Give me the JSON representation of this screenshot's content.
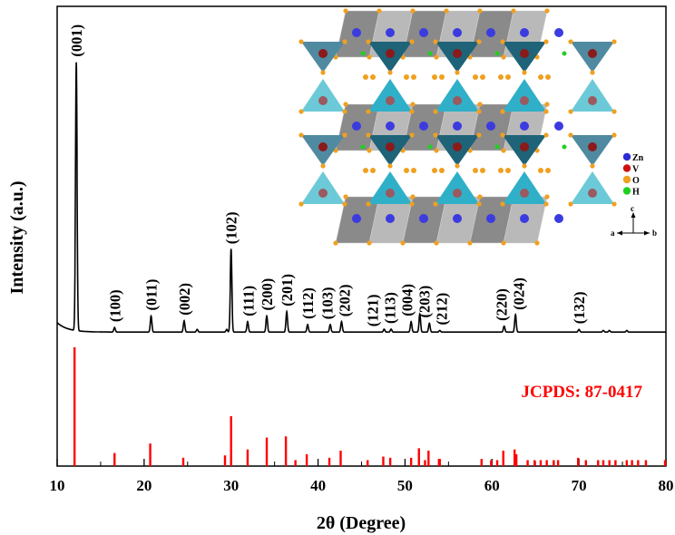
{
  "chart_data": {
    "type": "line",
    "xlabel": "2θ (Degree)",
    "ylabel": "Intensity (a.u.)",
    "xlim": [
      10,
      80
    ],
    "xticks": [
      "10",
      "20",
      "30",
      "40",
      "50",
      "60",
      "70",
      "80"
    ],
    "grid": false,
    "colors": {
      "pattern": "#000000",
      "reference": "#ff0000",
      "reference_label": "#ff0000"
    },
    "series": [
      {
        "type": "line",
        "peaks": [
          {
            "x": 12.2,
            "y": 100,
            "label": "(001)"
          },
          {
            "x": 16.6,
            "y": 1.7,
            "label": "(100)"
          },
          {
            "x": 20.8,
            "y": 6,
            "label": "(011)"
          },
          {
            "x": 24.6,
            "y": 4.2,
            "label": "(002)"
          },
          {
            "x": 26.1,
            "y": 1,
            "label": ""
          },
          {
            "x": 29.5,
            "y": 1,
            "label": ""
          },
          {
            "x": 30.0,
            "y": 31,
            "label": "(102)"
          },
          {
            "x": 31.9,
            "y": 3.9,
            "label": "(111)"
          },
          {
            "x": 34.1,
            "y": 6,
            "label": "(200)"
          },
          {
            "x": 36.4,
            "y": 7.6,
            "label": "(201)"
          },
          {
            "x": 38.8,
            "y": 2.8,
            "label": "(112)"
          },
          {
            "x": 41.4,
            "y": 2.8,
            "label": "(103)"
          },
          {
            "x": 42.7,
            "y": 3.9,
            "label": "(202)"
          },
          {
            "x": 47.6,
            "y": 1.1,
            "label": "(121)"
          },
          {
            "x": 48.4,
            "y": 1.1,
            "label": "(113)"
          },
          {
            "x": 50.7,
            "y": 3.9,
            "label": "(004)"
          },
          {
            "x": 51.7,
            "y": 6.7,
            "label": "(203)"
          },
          {
            "x": 52.8,
            "y": 3.3,
            "label": "(212)"
          },
          {
            "x": 54.0,
            "y": 0.6,
            "label": ""
          },
          {
            "x": 61.4,
            "y": 2.2,
            "label": "(220)"
          },
          {
            "x": 62.7,
            "y": 6.5,
            "label": "(024)"
          },
          {
            "x": 70.0,
            "y": 1,
            "label": "(132)"
          },
          {
            "x": 72.8,
            "y": 0.6,
            "label": ""
          },
          {
            "x": 73.5,
            "y": 0.6,
            "label": ""
          },
          {
            "x": 75.5,
            "y": 0.6,
            "label": ""
          }
        ]
      },
      {
        "type": "stick",
        "name": "JCPDS: 87-0417",
        "x": [
          12.0,
          16.6,
          20.7,
          24.5,
          29.3,
          30.0,
          31.9,
          34.1,
          36.3,
          37.4,
          38.7,
          41.3,
          42.6,
          45.7,
          47.5,
          48.3,
          50.7,
          51.6,
          52.3,
          52.7,
          53.9,
          54.0,
          58.8,
          59.9,
          60.6,
          61.3,
          62.6,
          62.8,
          64.1,
          64.9,
          65.6,
          66.3,
          67.1,
          67.6,
          69.9,
          70.8,
          72.2,
          72.8,
          73.5,
          74.2,
          75.5,
          76.1,
          76.8,
          77.7,
          79.9
        ],
        "y": [
          100,
          11,
          19,
          7,
          9,
          42,
          14,
          24,
          25,
          5,
          10,
          7,
          13,
          5,
          8,
          7,
          7,
          15,
          5,
          13,
          6,
          6,
          6,
          5,
          5,
          13,
          14,
          10,
          5,
          5,
          5,
          5,
          5,
          5,
          7,
          5,
          5,
          5,
          5,
          5,
          5,
          5,
          5,
          5,
          5
        ]
      }
    ],
    "inset": {
      "legend": [
        {
          "label": "Zn",
          "color": "#2b2bd8"
        },
        {
          "label": "V",
          "color": "#d01010"
        },
        {
          "label": "O",
          "color": "#f0a020"
        },
        {
          "label": "H",
          "color": "#20d020"
        }
      ],
      "axes": {
        "c": "c",
        "a": "a",
        "b": "b"
      }
    }
  }
}
